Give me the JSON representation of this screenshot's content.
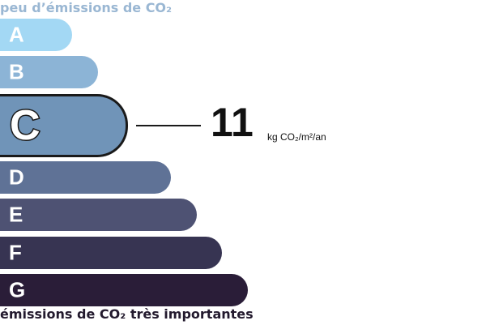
{
  "header_top": "peu d’émissions de CO₂",
  "header_bottom": "émissions de CO₂ très importantes",
  "classes": [
    {
      "label": "A",
      "color": "#a3d8f4"
    },
    {
      "label": "B",
      "color": "#8cb4d6"
    },
    {
      "label": "C",
      "color": "#7094b8"
    },
    {
      "label": "D",
      "color": "#5f7296"
    },
    {
      "label": "E",
      "color": "#4e5273"
    },
    {
      "label": "F",
      "color": "#373452"
    },
    {
      "label": "G",
      "color": "#2a1d38"
    }
  ],
  "selected_class": "C",
  "value": "11",
  "unit": "kg CO₂/m²/an"
}
